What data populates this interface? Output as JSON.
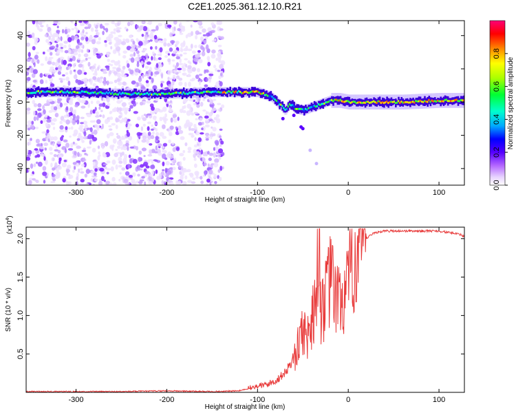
{
  "chart_data": [
    {
      "type": "heatmap",
      "title": "C2E1.2025.361.12.10.R21",
      "xlabel": "Height of straight line (km)",
      "ylabel": "Frequency (Hz)",
      "xlim": [
        -355,
        128
      ],
      "ylim": [
        -50,
        49
      ],
      "xticks": [
        -300,
        -200,
        -100,
        0,
        100
      ],
      "xtick_labels": [
        "-300",
        "-200",
        "-100",
        "0",
        "100"
      ],
      "yticks": [
        40,
        20,
        0,
        -20,
        -40
      ],
      "ytick_labels": [
        "40",
        "20",
        "0",
        "-20",
        "-40"
      ],
      "colorbar": {
        "label": "Normalized spectral amplitude",
        "range": [
          0,
          1
        ],
        "ticks": [
          0.0,
          0.2,
          0.4,
          0.6,
          0.8
        ],
        "tick_labels": [
          "0.0",
          "0.2",
          "0.4",
          "0.6",
          "0.8"
        ],
        "colors": [
          "#ffffff",
          "#cc99ff",
          "#7700ff",
          "#0000ff",
          "#00aaff",
          "#00ffcc",
          "#00ff33",
          "#aaff00",
          "#ffff00",
          "#ff8800",
          "#ff0000",
          "#ff0077"
        ]
      },
      "ridge": {
        "x": [
          -355,
          -300,
          -250,
          -200,
          -150,
          -120,
          -100,
          -85,
          -75,
          -70,
          -65,
          -58,
          -50,
          -40,
          -30,
          -20,
          -10,
          0,
          20,
          60,
          100,
          128
        ],
        "frequency": [
          6,
          6,
          5,
          5,
          6,
          6,
          6,
          3,
          -2,
          -5,
          -1,
          -4,
          -5,
          -3,
          -1,
          1,
          1,
          0,
          0,
          0,
          1,
          1
        ]
      },
      "noise_region_x": [
        -355,
        -138
      ]
    },
    {
      "type": "line",
      "title": "",
      "xlabel": "Height of straight line (km)",
      "ylabel": "SNR (10 * v/v)",
      "scale_note": "(x10",
      "scale_exponent": "4",
      "scale_close": ")",
      "xlim": [
        -355,
        128
      ],
      "ylim": [
        0,
        2.15
      ],
      "xticks": [
        -300,
        -200,
        -100,
        0,
        100
      ],
      "xtick_labels": [
        "-300",
        "-200",
        "-100",
        "0",
        "100"
      ],
      "yticks": [
        0.5,
        1.0,
        1.5,
        2.0
      ],
      "ytick_labels": [
        "0.5",
        "1.0",
        "1.5",
        "2.0"
      ],
      "series": [
        {
          "name": "SNR",
          "color": "#e83a3a",
          "x": [
            -355,
            -300,
            -250,
            -200,
            -150,
            -120,
            -110,
            -100,
            -90,
            -80,
            -70,
            -60,
            -55,
            -50,
            -45,
            -40,
            -35,
            -32,
            -30,
            -25,
            -20,
            -15,
            -10,
            -5,
            0,
            5,
            10,
            15,
            20,
            25,
            30,
            40,
            50,
            60,
            80,
            100,
            110,
            120,
            128
          ],
          "y": [
            0.01,
            0.01,
            0.01,
            0.02,
            0.01,
            0.02,
            0.05,
            0.08,
            0.1,
            0.15,
            0.25,
            0.45,
            0.6,
            0.85,
            0.7,
            1.0,
            1.3,
            2.08,
            1.1,
            1.2,
            1.45,
            1.3,
            1.15,
            1.25,
            1.35,
            1.7,
            1.85,
            1.95,
            2.0,
            2.05,
            2.08,
            2.1,
            2.1,
            2.1,
            2.1,
            2.1,
            2.08,
            2.07,
            2.03
          ]
        }
      ]
    }
  ]
}
